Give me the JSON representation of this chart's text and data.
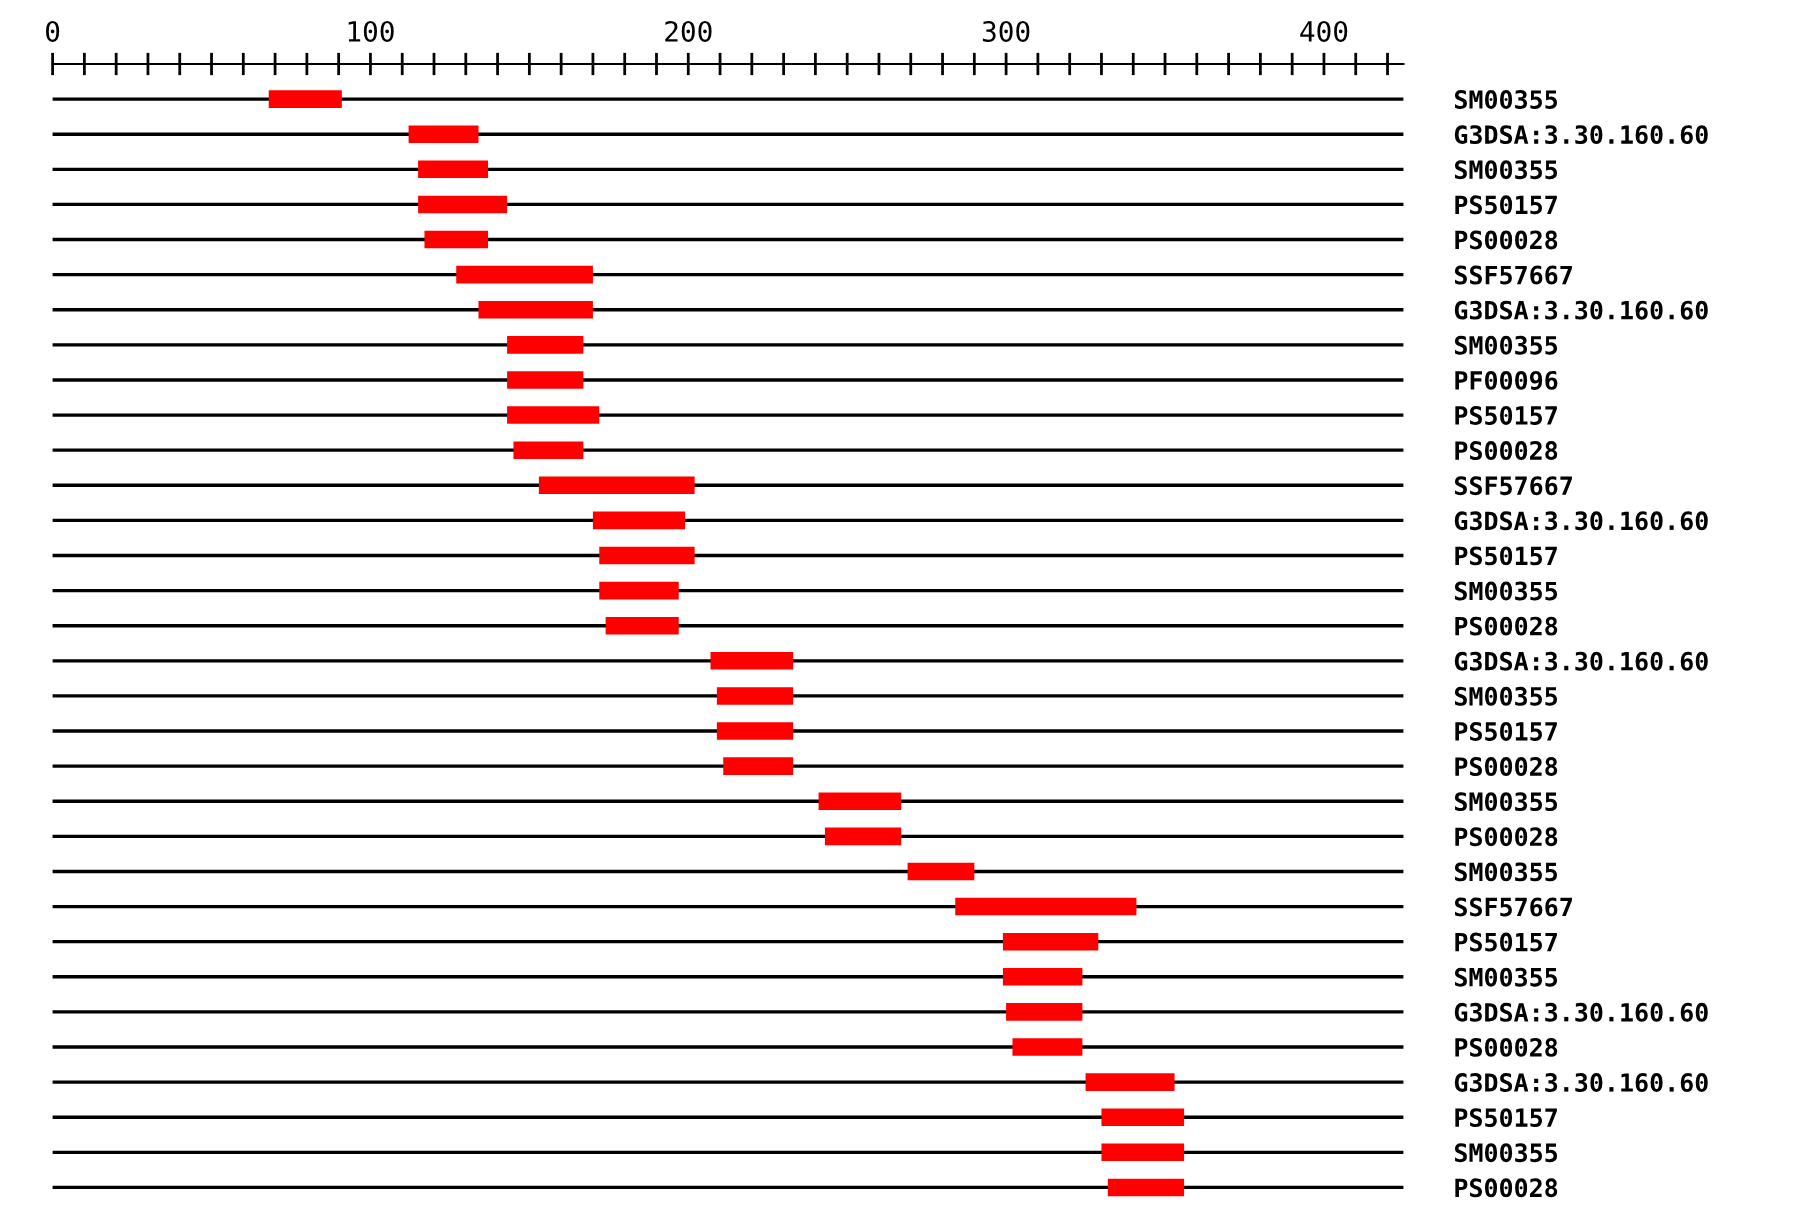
{
  "chart_data": {
    "type": "bar",
    "orientation": "horizontal",
    "categories": [
      "SM00355",
      "G3DSA:3.30.160.60",
      "SM00355",
      "PS50157",
      "PS00028",
      "SSF57667",
      "G3DSA:3.30.160.60",
      "SM00355",
      "PF00096",
      "PS50157",
      "PS00028",
      "SSF57667",
      "G3DSA:3.30.160.60",
      "PS50157",
      "SM00355",
      "PS00028",
      "G3DSA:3.30.160.60",
      "SM00355",
      "PS50157",
      "PS00028",
      "SM00355",
      "PS00028",
      "SM00355",
      "SSF57667",
      "PS50157",
      "SM00355",
      "G3DSA:3.30.160.60",
      "PS00028",
      "G3DSA:3.30.160.60",
      "PS50157",
      "SM00355",
      "PS00028"
    ],
    "base": [
      68,
      112,
      115,
      115,
      117,
      127,
      134,
      143,
      143,
      143,
      145,
      153,
      170,
      172,
      172,
      174,
      207,
      209,
      209,
      211,
      241,
      243,
      269,
      284,
      299,
      299,
      300,
      302,
      325,
      330,
      330,
      332
    ],
    "values": [
      23,
      22,
      22,
      28,
      20,
      43,
      36,
      24,
      24,
      29,
      22,
      49,
      29,
      30,
      25,
      23,
      26,
      24,
      24,
      22,
      26,
      24,
      21,
      57,
      30,
      25,
      24,
      22,
      28,
      26,
      26,
      24
    ],
    "color": "#ff0000",
    "xlim": [
      0,
      425
    ],
    "xticks": [
      0,
      {
        "value": 10,
        "label": null
      },
      {
        "value": 20,
        "label": null
      },
      {
        "value": 30,
        "label": null
      },
      {
        "value": 40,
        "label": null
      },
      {
        "value": 50,
        "label": null
      },
      {
        "value": 60,
        "label": null
      },
      {
        "value": 70,
        "label": null
      },
      {
        "value": 80,
        "label": null
      },
      {
        "value": 90,
        "label": null
      },
      100,
      {
        "value": 110,
        "label": null
      },
      {
        "value": 120,
        "label": null
      },
      {
        "value": 130,
        "label": null
      },
      {
        "value": 140,
        "label": null
      },
      {
        "value": 150,
        "label": null
      },
      {
        "value": 160,
        "label": null
      },
      {
        "value": 170,
        "label": null
      },
      {
        "value": 180,
        "label": null
      },
      {
        "value": 190,
        "label": null
      },
      200,
      {
        "value": 210,
        "label": null
      },
      {
        "value": 220,
        "label": null
      },
      {
        "value": 230,
        "label": null
      },
      {
        "value": 240,
        "label": null
      },
      {
        "value": 250,
        "label": null
      },
      {
        "value": 260,
        "label": null
      },
      {
        "value": 270,
        "label": null
      },
      {
        "value": 280,
        "label": null
      },
      {
        "value": 290,
        "label": null
      },
      300,
      {
        "value": 310,
        "label": null
      },
      {
        "value": 320,
        "label": null
      },
      {
        "value": 330,
        "label": null
      },
      {
        "value": 340,
        "label": null
      },
      {
        "value": 350,
        "label": null
      },
      {
        "value": 360,
        "label": null
      },
      {
        "value": 370,
        "label": null
      },
      {
        "value": 380,
        "label": null
      },
      {
        "value": 390,
        "label": null
      },
      400,
      {
        "value": 410,
        "label": null
      },
      {
        "value": 420,
        "label": null
      }
    ],
    "grid": "y"
  }
}
